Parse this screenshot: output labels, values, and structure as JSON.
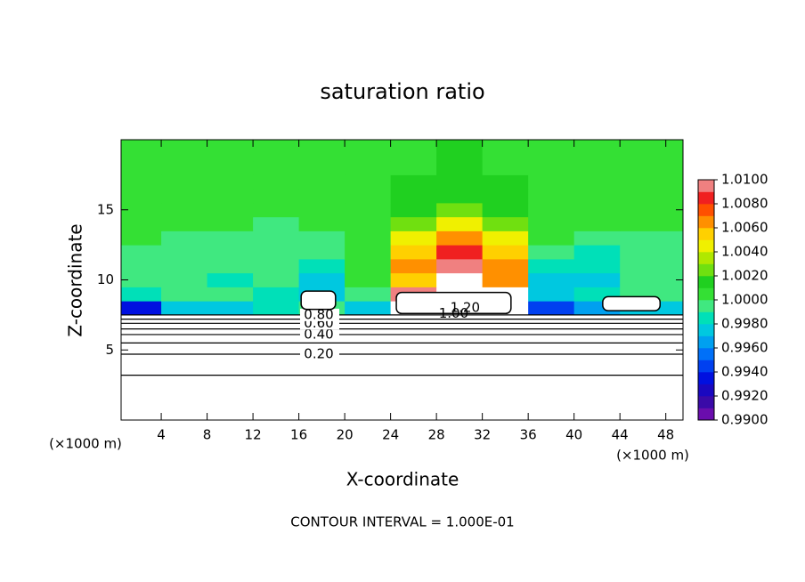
{
  "chart_data": {
    "type": "contour",
    "title": "saturation ratio",
    "x_label": "X-coordinate",
    "y_label": "Z-coordinate",
    "x_unit_label": "(×1000 m)",
    "footer": "CONTOUR INTERVAL = 1.000E-01",
    "xlim": [
      0.5,
      49.5
    ],
    "ylim": [
      0,
      20
    ],
    "xticks": [
      4,
      8,
      12,
      16,
      20,
      24,
      28,
      32,
      36,
      40,
      44,
      48
    ],
    "yticks": [
      5,
      10,
      15
    ],
    "field": {
      "x": [
        2,
        6,
        10,
        14,
        18,
        22,
        26,
        30,
        34,
        38,
        42,
        46
      ],
      "z": [
        8,
        9,
        10,
        11,
        12,
        13,
        14,
        15,
        16,
        17,
        18,
        19
      ],
      "values": [
        [
          0.993,
          0.997,
          0.997,
          0.998,
          0.999,
          0.997,
          1.011,
          1.011,
          1.011,
          0.994,
          0.996,
          0.997
        ],
        [
          0.998,
          0.999,
          0.999,
          0.998,
          0.997,
          0.999,
          1.009,
          1.011,
          1.01,
          0.997,
          0.998,
          0.999
        ],
        [
          0.999,
          0.999,
          0.998,
          0.999,
          0.997,
          1.0,
          1.005,
          1.011,
          1.006,
          0.997,
          0.997,
          0.999
        ],
        [
          0.999,
          0.999,
          0.999,
          0.999,
          0.998,
          1.0,
          1.006,
          1.009,
          1.006,
          0.998,
          0.998,
          0.999
        ],
        [
          0.999,
          0.999,
          0.999,
          0.999,
          0.999,
          1.0,
          1.005,
          1.008,
          1.005,
          0.999,
          0.998,
          0.999
        ],
        [
          1.0,
          0.999,
          0.999,
          0.999,
          0.999,
          1.0,
          1.004,
          1.006,
          1.004,
          1.0,
          0.999,
          0.999
        ],
        [
          1.0,
          1.0,
          1.0,
          0.999,
          1.0,
          1.0,
          1.002,
          1.004,
          1.002,
          1.0,
          1.0,
          1.0
        ],
        [
          1.0,
          1.0,
          1.0,
          1.0,
          1.0,
          1.0,
          1.001,
          1.002,
          1.001,
          1.0,
          1.0,
          1.0
        ],
        [
          1.0,
          1.0,
          1.0,
          1.0,
          1.0,
          1.0,
          1.001,
          1.001,
          1.001,
          1.0,
          1.0,
          1.0
        ],
        [
          1.0,
          1.0,
          1.0,
          1.0,
          1.0,
          1.0,
          1.001,
          1.001,
          1.001,
          1.0,
          1.0,
          1.0
        ],
        [
          1.0,
          1.0,
          1.0,
          1.0,
          1.0,
          1.0,
          1.0,
          1.001,
          1.0,
          1.0,
          1.0,
          1.0
        ],
        [
          1.0,
          1.0,
          1.0,
          1.0,
          1.0,
          1.0,
          1.0,
          1.001,
          1.0,
          1.0,
          1.0,
          1.0
        ]
      ]
    },
    "above_color": "#ffffff",
    "contour_lines": [
      {
        "level": 0.1,
        "z": 3.2
      },
      {
        "level": {
          "value": 0.2,
          "label": "0.20"
        },
        "z": 4.7
      },
      {
        "level": 0.3,
        "z": 5.5
      },
      {
        "level": {
          "value": 0.4,
          "label": "0.40"
        },
        "z": 6.1
      },
      {
        "level": 0.5,
        "z": 6.5
      },
      {
        "level": {
          "value": 0.6,
          "label": "0.60"
        },
        "z": 6.9
      },
      {
        "level": 0.7,
        "z": 7.2
      },
      {
        "level": {
          "value": 0.8,
          "label": "0.80"
        },
        "z": 7.5
      }
    ],
    "clouds": [
      {
        "x": [
          24.5,
          34.5
        ],
        "z": [
          7.6,
          9.1
        ]
      },
      {
        "x": [
          42.5,
          47.5
        ],
        "z": [
          7.8,
          8.8
        ]
      },
      {
        "x": [
          16.2,
          19.2
        ],
        "z": [
          7.9,
          9.2
        ]
      }
    ],
    "cloud_labels": [
      {
        "value": 1.2,
        "label": "1.20",
        "x": 30.5,
        "z": 8.0
      },
      {
        "value": 1.0,
        "label": "1.00",
        "x": 29.5,
        "z": 7.6
      }
    ],
    "colorbar": {
      "lim": [
        0.99,
        1.01
      ],
      "ticks": [
        {
          "value": 0.99,
          "label": "0.9900"
        },
        {
          "value": 0.992,
          "label": "0.9920"
        },
        {
          "value": 0.994,
          "label": "0.9940"
        },
        {
          "value": 0.996,
          "label": "0.9960"
        },
        {
          "value": 0.998,
          "label": "0.9980"
        },
        {
          "value": 1.0,
          "label": "1.0000"
        },
        {
          "value": 1.002,
          "label": "1.0020"
        },
        {
          "value": 1.004,
          "label": "1.0040"
        },
        {
          "value": 1.006,
          "label": "1.0060"
        },
        {
          "value": 1.008,
          "label": "1.0080"
        },
        {
          "value": 1.01,
          "label": "1.0100"
        }
      ],
      "colors": [
        "#6a0dad",
        "#3a0aa8",
        "#1a08c0",
        "#0010e0",
        "#0040f0",
        "#0070f8",
        "#00a0f0",
        "#00c8e0",
        "#00e0b8",
        "#40e880",
        "#34e034",
        "#20d020",
        "#70e010",
        "#b0e800",
        "#f0f000",
        "#ffd000",
        "#ff9000",
        "#ff5000",
        "#f02020",
        "#f08080"
      ]
    }
  }
}
